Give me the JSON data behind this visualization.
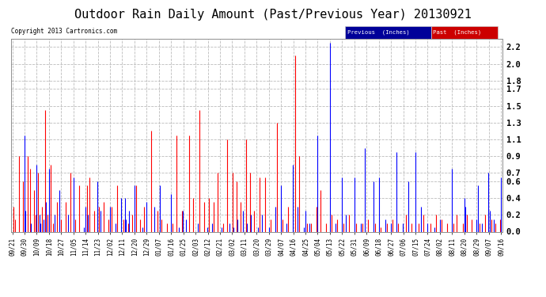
{
  "title": "Outdoor Rain Daily Amount (Past/Previous Year) 20130921",
  "copyright": "Copyright 2013 Cartronics.com",
  "legend_previous_label": "Previous  (Inches)",
  "legend_past_label": "Past  (Inches)",
  "legend_previous_color": "#0000FF",
  "legend_past_color": "#FF0000",
  "background_color": "#ffffff",
  "grid_color": "#bbbbbb",
  "title_fontsize": 11,
  "ylim": [
    0,
    2.3
  ],
  "yticks": [
    0.0,
    0.2,
    0.4,
    0.6,
    0.7,
    0.9,
    1.1,
    1.3,
    1.5,
    1.7,
    1.8,
    2.0,
    2.2
  ],
  "x_tick_labels": [
    "09/21",
    "09/30",
    "10/09",
    "10/18",
    "10/27",
    "11/05",
    "11/14",
    "11/23",
    "12/02",
    "12/11",
    "12/20",
    "12/29",
    "01/07",
    "01/16",
    "01/25",
    "02/03",
    "02/12",
    "02/21",
    "03/02",
    "03/11",
    "03/20",
    "03/29",
    "04/07",
    "04/16",
    "04/25",
    "05/04",
    "05/13",
    "05/22",
    "05/31",
    "06/09",
    "06/18",
    "06/27",
    "07/06",
    "07/15",
    "07/24",
    "08/02",
    "08/11",
    "08/20",
    "08/29",
    "09/07",
    "09/16"
  ],
  "x_tick_positions_days": [
    0,
    9,
    18,
    27,
    36,
    45,
    54,
    63,
    72,
    81,
    90,
    99,
    108,
    117,
    126,
    135,
    144,
    153,
    162,
    171,
    180,
    189,
    198,
    207,
    216,
    225,
    234,
    243,
    252,
    261,
    270,
    279,
    288,
    297,
    306,
    315,
    324,
    333,
    342,
    351,
    360
  ],
  "total_days": 361,
  "prev_rain_days": [
    9,
    10,
    14,
    18,
    20,
    21,
    23,
    25,
    27,
    31,
    35,
    41,
    45,
    53,
    54,
    56,
    63,
    65,
    72,
    76,
    80,
    83,
    84,
    86,
    90,
    96,
    99,
    105,
    109,
    117,
    123,
    126,
    128,
    137,
    144,
    147,
    154,
    160,
    163,
    166,
    170,
    173,
    176,
    181,
    184,
    189,
    194,
    198,
    202,
    207,
    210,
    215,
    216,
    219,
    225,
    234,
    238,
    243,
    246,
    252,
    257,
    260,
    266,
    270,
    275,
    279,
    283,
    288,
    292,
    297,
    301,
    306,
    311,
    315,
    324,
    333,
    334,
    342,
    343,
    346,
    351,
    352,
    355,
    360
  ],
  "prev_rain_vals": [
    1.15,
    0.25,
    0.1,
    0.8,
    0.2,
    0.1,
    0.15,
    0.35,
    0.75,
    0.2,
    0.5,
    0.2,
    0.65,
    0.05,
    0.3,
    0.2,
    0.6,
    0.25,
    0.3,
    0.1,
    0.4,
    0.4,
    0.15,
    0.25,
    0.55,
    0.05,
    0.35,
    0.3,
    0.55,
    0.45,
    0.05,
    0.25,
    0.15,
    0.1,
    0.05,
    0.1,
    0.05,
    0.1,
    0.05,
    0.15,
    0.25,
    0.1,
    0.2,
    0.05,
    0.2,
    0.05,
    0.3,
    0.55,
    0.1,
    0.8,
    0.3,
    0.05,
    0.25,
    0.1,
    1.15,
    2.25,
    0.1,
    0.65,
    0.2,
    0.65,
    0.1,
    1.0,
    0.6,
    0.65,
    0.15,
    0.1,
    0.95,
    0.1,
    0.6,
    0.95,
    0.3,
    0.1,
    0.05,
    0.15,
    0.75,
    0.4,
    0.3,
    0.15,
    0.55,
    0.1,
    0.7,
    0.25,
    0.15,
    0.65
  ],
  "past_rain_days": [
    1,
    2,
    5,
    8,
    11,
    13,
    16,
    17,
    19,
    22,
    24,
    26,
    28,
    30,
    33,
    36,
    39,
    43,
    46,
    49,
    55,
    57,
    60,
    64,
    67,
    71,
    73,
    77,
    82,
    85,
    88,
    91,
    94,
    97,
    102,
    107,
    110,
    114,
    118,
    121,
    125,
    130,
    133,
    138,
    141,
    145,
    148,
    151,
    155,
    158,
    162,
    165,
    168,
    172,
    175,
    178,
    182,
    186,
    190,
    195,
    199,
    203,
    208,
    211,
    217,
    220,
    224,
    227,
    231,
    235,
    239,
    244,
    248,
    253,
    258,
    262,
    267,
    271,
    276,
    280,
    284,
    290,
    294,
    299,
    303,
    308,
    312,
    316,
    320,
    325,
    327,
    332,
    335,
    338,
    344,
    348,
    353,
    356,
    359
  ],
  "past_rain_vals": [
    0.3,
    0.15,
    0.9,
    0.6,
    0.9,
    0.75,
    0.5,
    0.2,
    0.7,
    0.3,
    1.45,
    0.2,
    0.8,
    0.1,
    0.35,
    0.15,
    0.35,
    0.7,
    0.15,
    0.55,
    0.55,
    0.65,
    0.25,
    0.3,
    0.35,
    0.15,
    0.3,
    0.55,
    0.15,
    0.1,
    0.2,
    0.55,
    0.15,
    0.3,
    1.2,
    0.25,
    0.15,
    0.1,
    0.1,
    1.15,
    0.25,
    1.15,
    0.4,
    1.45,
    0.35,
    0.4,
    0.35,
    0.7,
    0.1,
    1.1,
    0.7,
    0.6,
    0.35,
    1.1,
    0.7,
    0.25,
    0.65,
    0.65,
    0.15,
    1.3,
    0.15,
    0.3,
    2.1,
    0.9,
    0.1,
    0.1,
    0.3,
    0.5,
    0.1,
    0.2,
    0.15,
    0.1,
    0.2,
    0.1,
    0.1,
    0.15,
    0.1,
    0.05,
    0.1,
    0.15,
    0.1,
    0.2,
    0.1,
    0.1,
    0.2,
    0.1,
    0.2,
    0.15,
    0.1,
    0.1,
    0.2,
    0.1,
    0.2,
    0.15,
    0.1,
    0.2,
    0.15,
    0.1,
    0.15
  ]
}
